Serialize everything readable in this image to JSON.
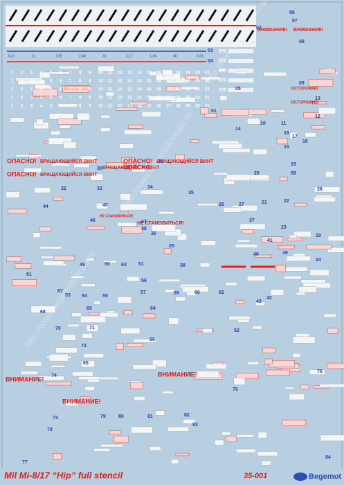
{
  "sheet": {
    "title": "Mil Mi-8/17 “Hip” full stencil",
    "code": "35-001",
    "brand": "Begemot",
    "watermark": "http://www.begemotdecals.ru",
    "digits": [
      "1",
      "2",
      "3",
      "4",
      "5",
      "6",
      "7",
      "8",
      "9",
      "10",
      "11",
      "12",
      "13",
      "14",
      "15",
      "16",
      "17",
      "18",
      "19",
      "20",
      "21"
    ],
    "ruler_marks": [
      "0,31",
      "11",
      "1,55",
      "2,48",
      "31",
      "2,17",
      "1,24",
      "46",
      "0,31"
    ],
    "serials": [
      "2ПС",
      "2ПС",
      "2ПС",
      "2ПС",
      "2ПС"
    ],
    "warnings": {
      "danger": "ОПАСНО!",
      "rotor": "ВРАЩАЮЩИЙСЯ ВИНТ",
      "attention": "ВНИМАНИЕ!",
      "no_step": "НЕ СТАНОВИТЬСЯ!",
      "caution": "ОСТОРОЖНО"
    },
    "labels": [
      "01",
      "02",
      "03",
      "04",
      "05",
      "06",
      "07",
      "08",
      "09",
      "10",
      "11",
      "12",
      "13",
      "14",
      "15",
      "16",
      "17",
      "18",
      "19",
      "20",
      "21",
      "22",
      "23",
      "24",
      "25",
      "26",
      "27",
      "28",
      "29",
      "30",
      "31",
      "32",
      "33",
      "34",
      "35",
      "36",
      "37",
      "38",
      "39",
      "40",
      "41",
      "42",
      "43",
      "44",
      "45",
      "46",
      "47",
      "48",
      "49",
      "50",
      "51",
      "52",
      "53",
      "54",
      "55",
      "56",
      "57",
      "58",
      "59",
      "60",
      "61",
      "62",
      "63",
      "64",
      "65",
      "66",
      "67",
      "68",
      "69",
      "70",
      "71",
      "72",
      "73",
      "74",
      "75",
      "76",
      "77",
      "78",
      "79",
      "80",
      "81",
      "82",
      "83",
      "84"
    ]
  }
}
